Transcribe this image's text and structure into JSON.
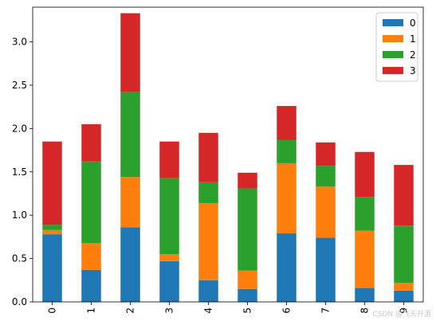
{
  "chart_data": {
    "type": "bar",
    "stacked": true,
    "categories": [
      "0",
      "1",
      "2",
      "3",
      "4",
      "5",
      "6",
      "7",
      "8",
      "9"
    ],
    "x_tick_rotation": 90,
    "ylim": [
      0,
      3.4
    ],
    "yticks": [
      0.0,
      0.5,
      1.0,
      1.5,
      2.0,
      2.5,
      3.0
    ],
    "ytick_labels": [
      "0.0",
      "0.5",
      "1.0",
      "1.5",
      "2.0",
      "2.5",
      "3.0"
    ],
    "grid": false,
    "legend_position": "upper right",
    "series": [
      {
        "name": "0",
        "color": "#1f77b4",
        "values": [
          0.78,
          0.37,
          0.86,
          0.47,
          0.25,
          0.15,
          0.79,
          0.74,
          0.16,
          0.13
        ]
      },
      {
        "name": "1",
        "color": "#ff7f0e",
        "values": [
          0.05,
          0.31,
          0.58,
          0.08,
          0.89,
          0.21,
          0.81,
          0.59,
          0.66,
          0.09
        ]
      },
      {
        "name": "2",
        "color": "#2ca02c",
        "values": [
          0.06,
          0.94,
          0.98,
          0.88,
          0.24,
          0.95,
          0.27,
          0.24,
          0.39,
          0.66
        ]
      },
      {
        "name": "3",
        "color": "#d62728",
        "values": [
          0.96,
          0.43,
          0.91,
          0.42,
          0.57,
          0.18,
          0.39,
          0.27,
          0.52,
          0.7
        ]
      }
    ]
  },
  "watermark": "CSDN @飞天开源"
}
